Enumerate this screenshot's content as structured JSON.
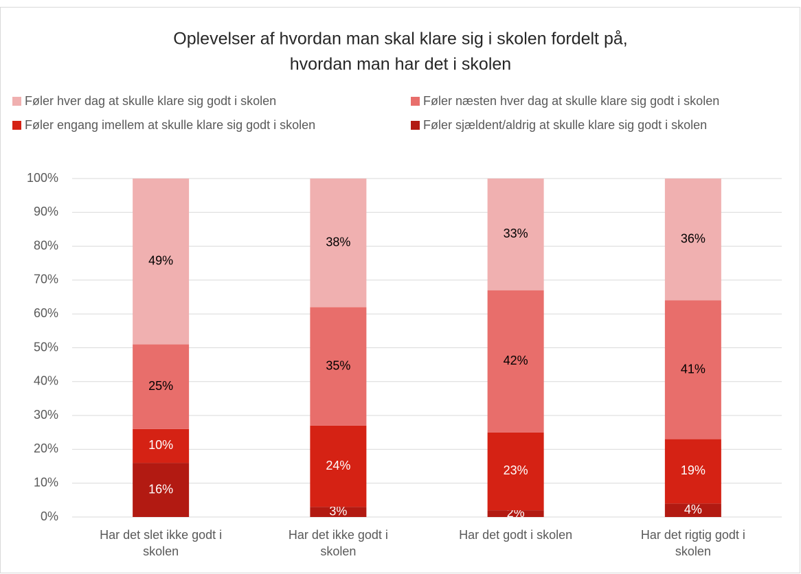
{
  "chart_data": {
    "type": "stacked_bar",
    "title": [
      "Oplevelser af hvordan man skal klare sig i skolen fordelt på,",
      "hvordan man har det i skolen"
    ],
    "categories": [
      "Har det slet ikke godt i skolen",
      "Har det ikke godt i skolen",
      "Har det godt i skolen",
      "Har det rigtig godt i skolen"
    ],
    "series": [
      {
        "name": "Føler sjældent/aldrig at skulle klare sig godt i skolen",
        "color": "#b21a12",
        "values": [
          16,
          3,
          2,
          4
        ],
        "value_labels": [
          "16%",
          "3%",
          "2%",
          "4%"
        ]
      },
      {
        "name": "Føler engang imellem at skulle klare sig godt i skolen",
        "color": "#d52214",
        "values": [
          10,
          24,
          23,
          19
        ],
        "value_labels": [
          "10%",
          "24%",
          "23%",
          "19%"
        ]
      },
      {
        "name": "Føler næsten hver dag at skulle klare sig godt i skolen",
        "color": "#e86e6b",
        "values": [
          25,
          35,
          42,
          41
        ],
        "value_labels": [
          "25%",
          "35%",
          "42%",
          "41%"
        ]
      },
      {
        "name": "Føler hver dag at skulle klare sig godt i skolen",
        "color": "#f0b0b0",
        "values": [
          49,
          38,
          33,
          36
        ],
        "value_labels": [
          "49%",
          "38%",
          "33%",
          "36%"
        ]
      }
    ],
    "ylim": [
      0,
      100
    ],
    "yticks": [
      {
        "value": 0,
        "label": "0%"
      },
      {
        "value": 10,
        "label": "10%"
      },
      {
        "value": 20,
        "label": "20%"
      },
      {
        "value": 30,
        "label": "30%"
      },
      {
        "value": 40,
        "label": "40%"
      },
      {
        "value": 50,
        "label": "50%"
      },
      {
        "value": 60,
        "label": "60%"
      },
      {
        "value": 70,
        "label": "70%"
      },
      {
        "value": 80,
        "label": "80%"
      },
      {
        "value": 90,
        "label": "90%"
      },
      {
        "value": 100,
        "label": "100%"
      }
    ],
    "grid": true
  }
}
